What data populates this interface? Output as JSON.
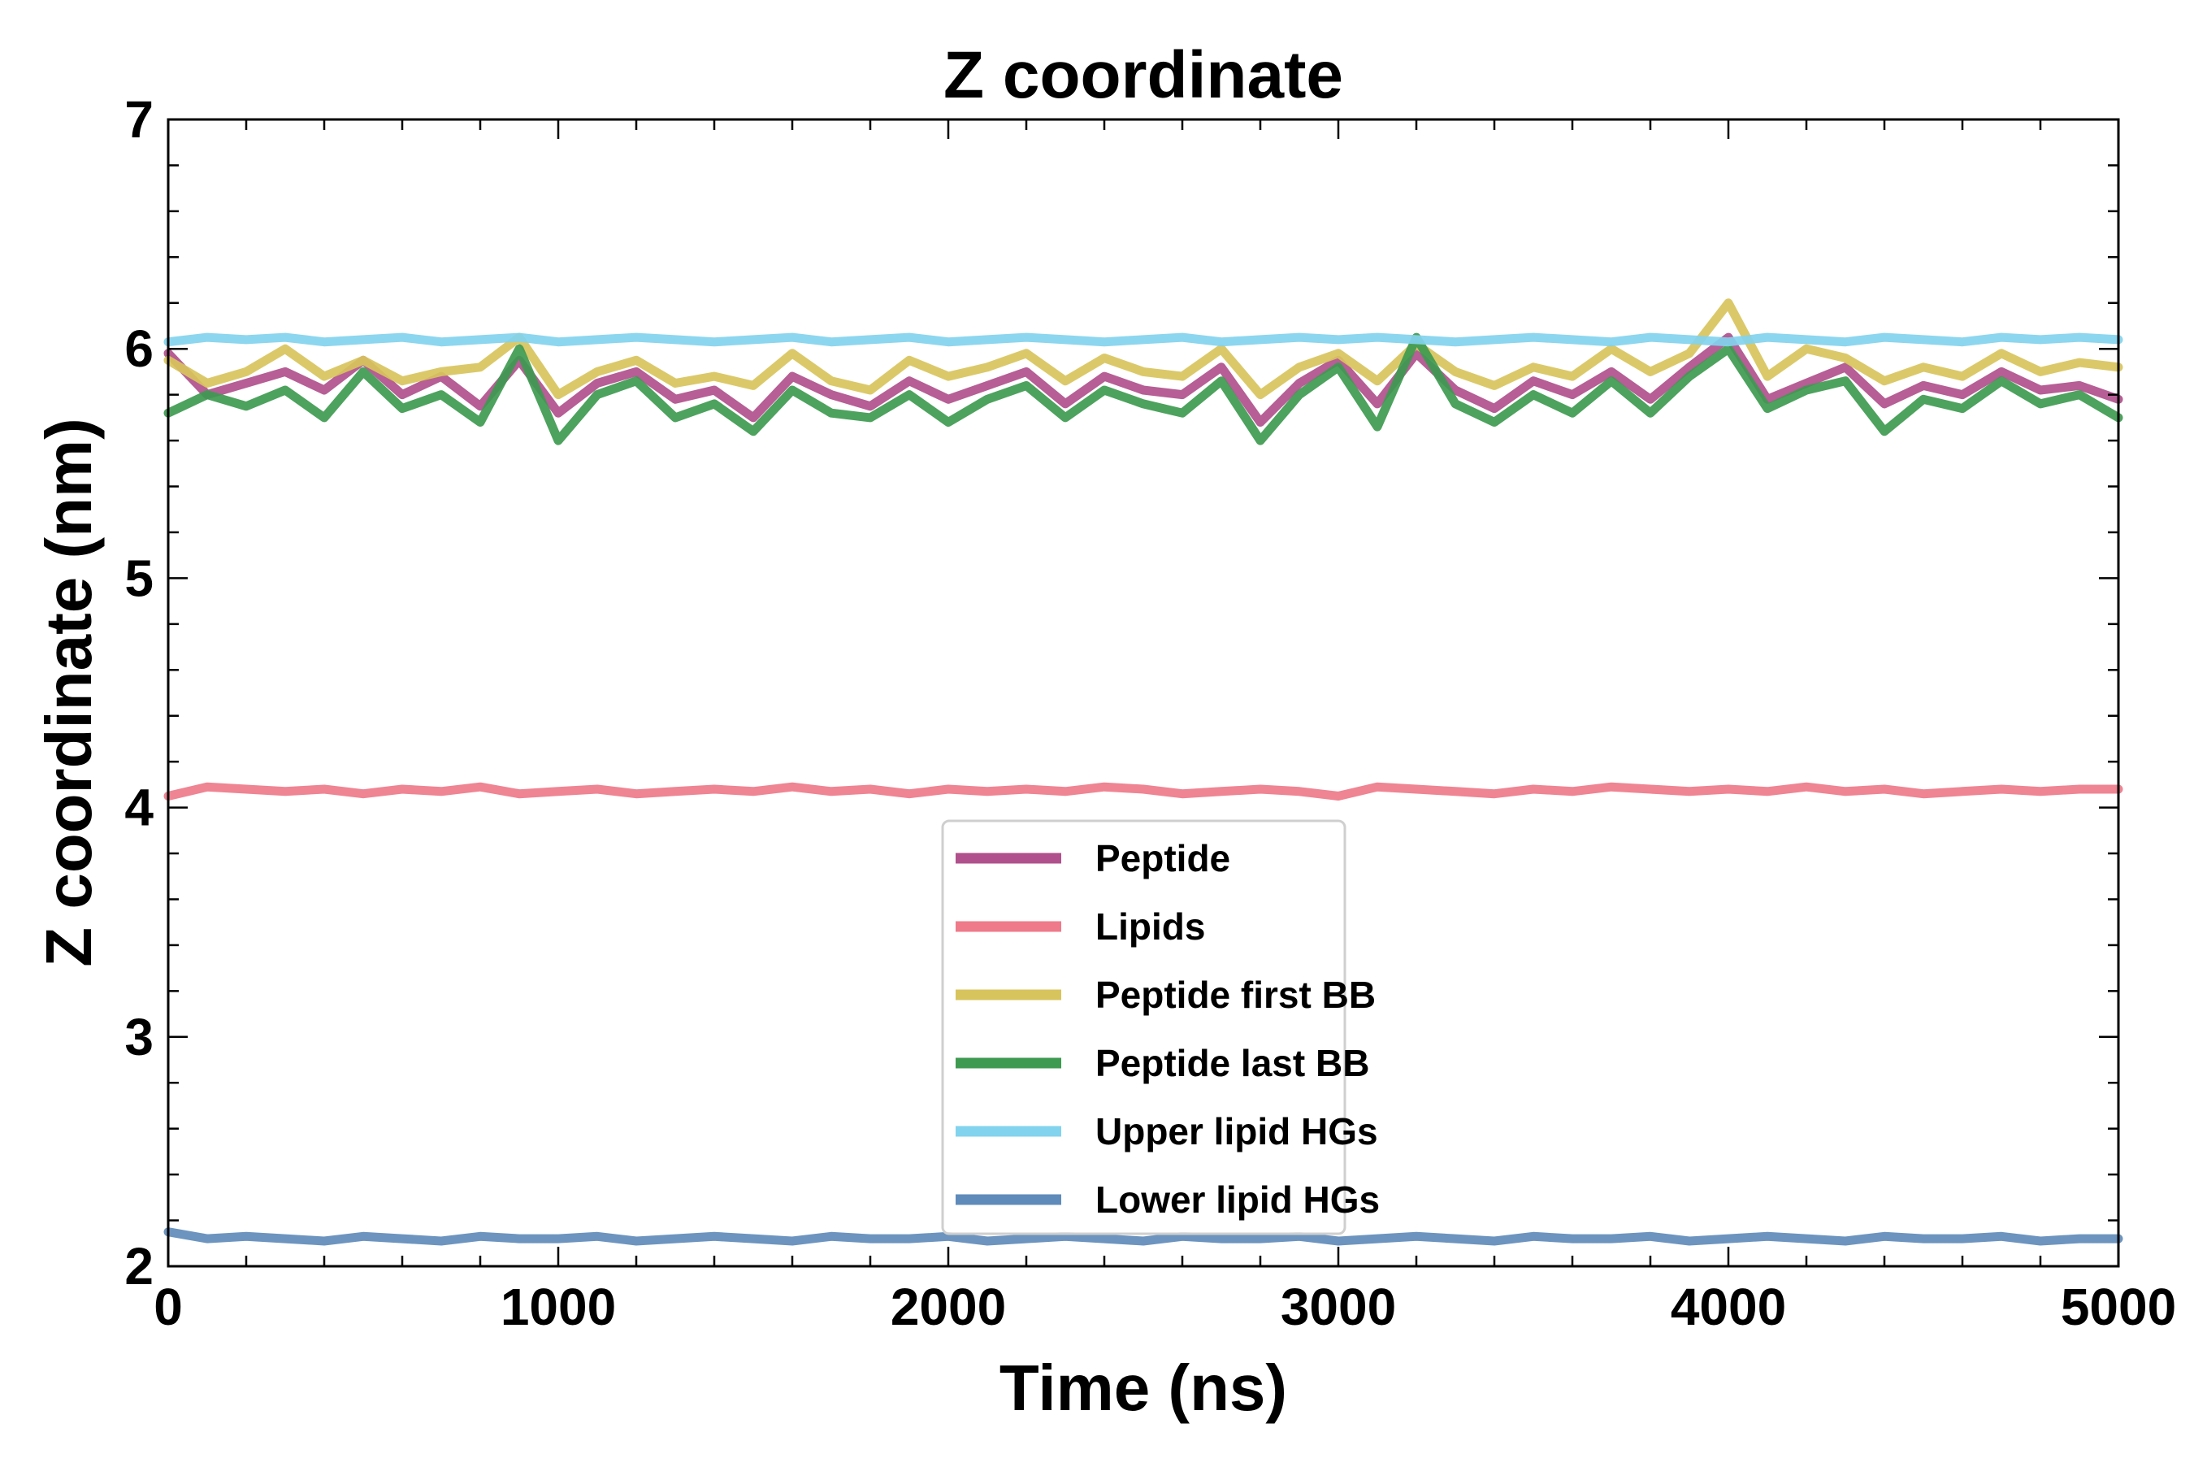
{
  "chart_data": {
    "type": "line",
    "title": "Z coordinate",
    "xlabel": "Time (ns)",
    "ylabel": "Z coordinate (nm)",
    "xlim": [
      0,
      5000
    ],
    "ylim": [
      2,
      7
    ],
    "xticks": [
      0,
      1000,
      2000,
      3000,
      4000,
      5000
    ],
    "xtick_labels": [
      "0",
      "1000",
      "2000",
      "3000",
      "4000",
      "5000"
    ],
    "yticks": [
      2,
      3,
      4,
      5,
      6,
      7
    ],
    "ytick_labels": [
      "2",
      "3",
      "4",
      "5",
      "6",
      "7"
    ],
    "grid": false,
    "legend_position": "lower-center",
    "x": [
      0,
      100,
      200,
      300,
      400,
      500,
      600,
      700,
      800,
      900,
      1000,
      1100,
      1200,
      1300,
      1400,
      1500,
      1600,
      1700,
      1800,
      1900,
      2000,
      2100,
      2200,
      2300,
      2400,
      2500,
      2600,
      2700,
      2800,
      2900,
      3000,
      3100,
      3200,
      3300,
      3400,
      3500,
      3600,
      3700,
      3800,
      3900,
      4000,
      4100,
      4200,
      4300,
      4400,
      4500,
      4600,
      4700,
      4800,
      4900,
      5000
    ],
    "series": [
      {
        "name": "Peptide",
        "color": "#b0508c",
        "values": [
          5.98,
          5.8,
          5.85,
          5.9,
          5.82,
          5.95,
          5.8,
          5.88,
          5.75,
          5.95,
          5.72,
          5.85,
          5.9,
          5.78,
          5.82,
          5.7,
          5.88,
          5.8,
          5.75,
          5.86,
          5.78,
          5.84,
          5.9,
          5.76,
          5.88,
          5.82,
          5.8,
          5.92,
          5.68,
          5.85,
          5.95,
          5.76,
          5.98,
          5.82,
          5.74,
          5.86,
          5.8,
          5.9,
          5.78,
          5.92,
          6.05,
          5.78,
          5.85,
          5.92,
          5.76,
          5.84,
          5.8,
          5.9,
          5.82,
          5.84,
          5.78
        ]
      },
      {
        "name": "Lipids",
        "color": "#ee7a8a",
        "values": [
          4.05,
          4.09,
          4.08,
          4.07,
          4.08,
          4.06,
          4.08,
          4.07,
          4.09,
          4.06,
          4.07,
          4.08,
          4.06,
          4.07,
          4.08,
          4.07,
          4.09,
          4.07,
          4.08,
          4.06,
          4.08,
          4.07,
          4.08,
          4.07,
          4.09,
          4.08,
          4.06,
          4.07,
          4.08,
          4.07,
          4.05,
          4.09,
          4.08,
          4.07,
          4.06,
          4.08,
          4.07,
          4.09,
          4.08,
          4.07,
          4.08,
          4.07,
          4.09,
          4.07,
          4.08,
          4.06,
          4.07,
          4.08,
          4.07,
          4.08,
          4.08
        ]
      },
      {
        "name": "Peptide first BB",
        "color": "#d8c45c",
        "values": [
          5.95,
          5.85,
          5.9,
          6.0,
          5.88,
          5.95,
          5.86,
          5.9,
          5.92,
          6.05,
          5.8,
          5.9,
          5.95,
          5.85,
          5.88,
          5.84,
          5.98,
          5.86,
          5.82,
          5.95,
          5.88,
          5.92,
          5.98,
          5.86,
          5.96,
          5.9,
          5.88,
          6.0,
          5.8,
          5.92,
          5.98,
          5.86,
          6.02,
          5.9,
          5.84,
          5.92,
          5.88,
          6.0,
          5.9,
          5.98,
          6.2,
          5.88,
          6.0,
          5.96,
          5.86,
          5.92,
          5.88,
          5.98,
          5.9,
          5.94,
          5.92
        ]
      },
      {
        "name": "Peptide last BB",
        "color": "#3e9a50",
        "values": [
          5.72,
          5.8,
          5.75,
          5.82,
          5.7,
          5.9,
          5.74,
          5.8,
          5.68,
          6.0,
          5.6,
          5.8,
          5.86,
          5.7,
          5.76,
          5.64,
          5.82,
          5.72,
          5.7,
          5.8,
          5.68,
          5.78,
          5.84,
          5.7,
          5.82,
          5.76,
          5.72,
          5.86,
          5.6,
          5.8,
          5.92,
          5.66,
          6.05,
          5.76,
          5.68,
          5.8,
          5.72,
          5.86,
          5.72,
          5.88,
          6.0,
          5.74,
          5.82,
          5.86,
          5.64,
          5.78,
          5.74,
          5.86,
          5.76,
          5.8,
          5.7
        ]
      },
      {
        "name": "Upper lipid HGs",
        "color": "#82d3ee",
        "values": [
          6.03,
          6.05,
          6.04,
          6.05,
          6.03,
          6.04,
          6.05,
          6.03,
          6.04,
          6.05,
          6.03,
          6.04,
          6.05,
          6.04,
          6.03,
          6.04,
          6.05,
          6.03,
          6.04,
          6.05,
          6.03,
          6.04,
          6.05,
          6.04,
          6.03,
          6.04,
          6.05,
          6.03,
          6.04,
          6.05,
          6.04,
          6.05,
          6.04,
          6.03,
          6.04,
          6.05,
          6.04,
          6.03,
          6.05,
          6.04,
          6.03,
          6.05,
          6.04,
          6.03,
          6.05,
          6.04,
          6.03,
          6.05,
          6.04,
          6.05,
          6.04
        ]
      },
      {
        "name": "Lower lipid HGs",
        "color": "#5f8bba",
        "values": [
          2.15,
          2.12,
          2.13,
          2.12,
          2.11,
          2.13,
          2.12,
          2.11,
          2.13,
          2.12,
          2.12,
          2.13,
          2.11,
          2.12,
          2.13,
          2.12,
          2.11,
          2.13,
          2.12,
          2.12,
          2.13,
          2.11,
          2.12,
          2.13,
          2.12,
          2.11,
          2.13,
          2.12,
          2.12,
          2.13,
          2.11,
          2.12,
          2.13,
          2.12,
          2.11,
          2.13,
          2.12,
          2.12,
          2.13,
          2.11,
          2.12,
          2.13,
          2.12,
          2.11,
          2.13,
          2.12,
          2.12,
          2.13,
          2.11,
          2.12,
          2.12
        ]
      }
    ]
  }
}
